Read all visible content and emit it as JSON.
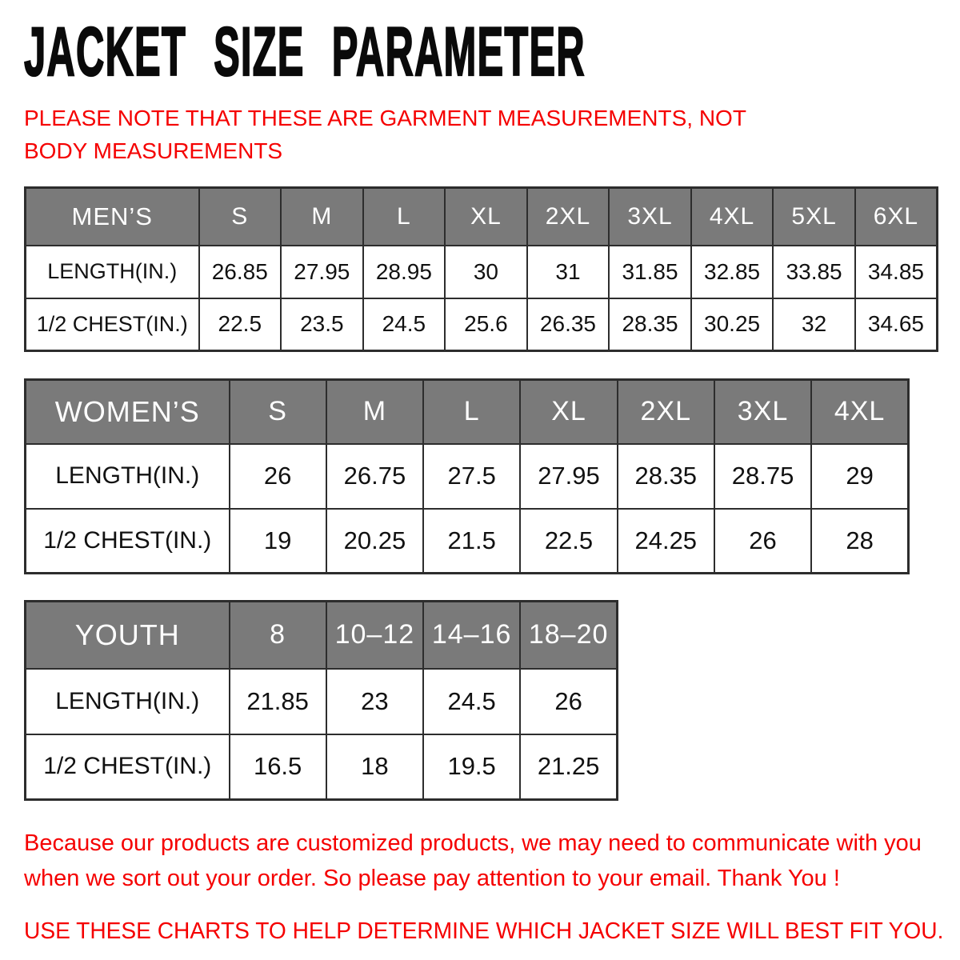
{
  "title": "JACKET SIZE PARAMETER",
  "top_note": "PLEASE NOTE THAT THESE ARE GARMENT MEASUREMENTS, NOT BODY MEASUREMENTS",
  "tables": [
    {
      "id": "mens",
      "css_class": "t-men",
      "group_label": "MEN’S",
      "sizes": [
        "S",
        "M",
        "L",
        "XL",
        "2XL",
        "3XL",
        "4XL",
        "5XL",
        "6XL"
      ],
      "rows": [
        {
          "label": "LENGTH(IN.)",
          "values": [
            "26.85",
            "27.95",
            "28.95",
            "30",
            "31",
            "31.85",
            "32.85",
            "33.85",
            "34.85"
          ]
        },
        {
          "label": "1/2 CHEST(IN.)",
          "values": [
            "22.5",
            "23.5",
            "24.5",
            "25.6",
            "26.35",
            "28.35",
            "30.25",
            "32",
            "34.65"
          ]
        }
      ]
    },
    {
      "id": "womens",
      "css_class": "t-women",
      "group_label": "WOMEN’S",
      "sizes": [
        "S",
        "M",
        "L",
        "XL",
        "2XL",
        "3XL",
        "4XL"
      ],
      "rows": [
        {
          "label": "LENGTH(IN.)",
          "values": [
            "26",
            "26.75",
            "27.5",
            "27.95",
            "28.35",
            "28.75",
            "29"
          ]
        },
        {
          "label": "1/2 CHEST(IN.)",
          "values": [
            "19",
            "20.25",
            "21.5",
            "22.5",
            "24.25",
            "26",
            "28"
          ]
        }
      ]
    },
    {
      "id": "youth",
      "css_class": "t-youth",
      "group_label": "YOUTH",
      "sizes": [
        "8",
        "10–12",
        "14–16",
        "18–20"
      ],
      "rows": [
        {
          "label": "LENGTH(IN.)",
          "values": [
            "21.85",
            "23",
            "24.5",
            "26"
          ]
        },
        {
          "label": "1/2 CHEST(IN.)",
          "values": [
            "16.5",
            "18",
            "19.5",
            "21.25"
          ]
        }
      ]
    }
  ],
  "footer": {
    "custom_note": "Because our products are customized products, we may need to communicate with you when we sort out your order. So please pay attention to your email. Thank You !",
    "usage_note": "USE THESE CHARTS TO HELP DETERMINE WHICH JACKET SIZE WILL BEST FIT YOU."
  },
  "colors": {
    "header_bg": "#7a7a7a",
    "header_text": "#ffffff",
    "table_border": "#2d2d2d",
    "accent_red": "#f50000",
    "title_black": "#0a0a0a"
  },
  "chart_data": [
    {
      "type": "table",
      "title": "MEN’S",
      "columns": [
        "MEN’S",
        "S",
        "M",
        "L",
        "XL",
        "2XL",
        "3XL",
        "4XL",
        "5XL",
        "6XL"
      ],
      "rows": [
        [
          "LENGTH(IN.)",
          26.85,
          27.95,
          28.95,
          30,
          31,
          31.85,
          32.85,
          33.85,
          34.85
        ],
        [
          "1/2 CHEST(IN.)",
          22.5,
          23.5,
          24.5,
          25.6,
          26.35,
          28.35,
          30.25,
          32,
          34.65
        ]
      ]
    },
    {
      "type": "table",
      "title": "WOMEN’S",
      "columns": [
        "WOMEN’S",
        "S",
        "M",
        "L",
        "XL",
        "2XL",
        "3XL",
        "4XL"
      ],
      "rows": [
        [
          "LENGTH(IN.)",
          26,
          26.75,
          27.5,
          27.95,
          28.35,
          28.75,
          29
        ],
        [
          "1/2 CHEST(IN.)",
          19,
          20.25,
          21.5,
          22.5,
          24.25,
          26,
          28
        ]
      ]
    },
    {
      "type": "table",
      "title": "YOUTH",
      "columns": [
        "YOUTH",
        "8",
        "10–12",
        "14–16",
        "18–20"
      ],
      "rows": [
        [
          "LENGTH(IN.)",
          21.85,
          23,
          24.5,
          26
        ],
        [
          "1/2 CHEST(IN.)",
          16.5,
          18,
          19.5,
          21.25
        ]
      ]
    }
  ]
}
